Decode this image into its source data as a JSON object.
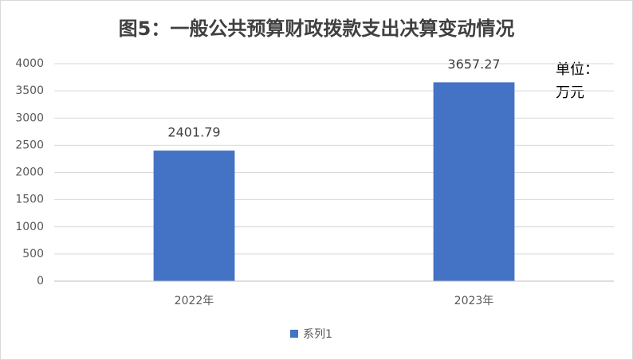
{
  "chart_data": {
    "type": "bar",
    "title": "图5：一般公共预算财政拨款支出决算变动情况",
    "annotation": [
      "单位：",
      "万元"
    ],
    "categories": [
      "2022年",
      "2023年"
    ],
    "series": [
      {
        "name": "系列1",
        "color": "#4472c4",
        "values": [
          2401.79,
          3657.27
        ]
      }
    ],
    "ylim": [
      0,
      4000
    ],
    "yticks": [
      0,
      500,
      1000,
      1500,
      2000,
      2500,
      3000,
      3500,
      4000
    ],
    "grid": true,
    "legend": "bottom"
  }
}
